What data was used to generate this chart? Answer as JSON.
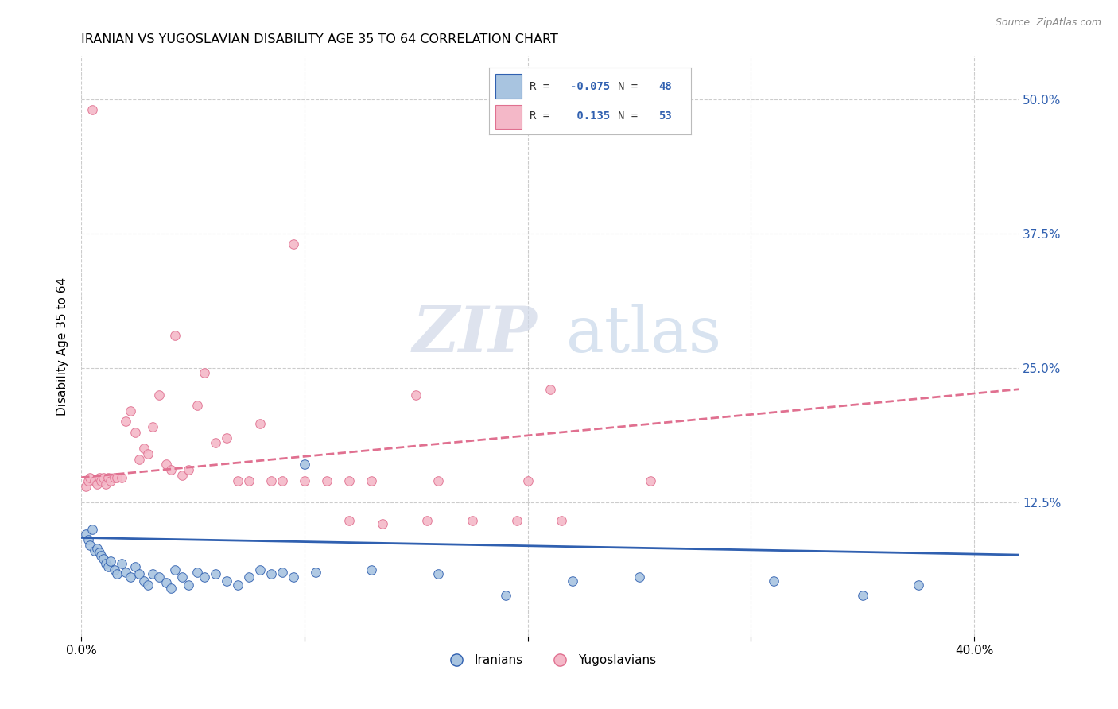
{
  "title": "IRANIAN VS YUGOSLAVIAN DISABILITY AGE 35 TO 64 CORRELATION CHART",
  "source": "Source: ZipAtlas.com",
  "ylabel": "Disability Age 35 to 64",
  "ytick_values": [
    0.125,
    0.25,
    0.375,
    0.5
  ],
  "xlim": [
    0.0,
    0.42
  ],
  "ylim": [
    0.0,
    0.54
  ],
  "iranian_color": "#a8c4e0",
  "yugoslavian_color": "#f4b8c8",
  "iranian_line_color": "#3060b0",
  "yugoslavian_line_color": "#e07090",
  "background_color": "#ffffff",
  "grid_color": "#cccccc",
  "iranians_label": "Iranians",
  "yugoslavians_label": "Yugoslavians",
  "iranians_scatter_x": [
    0.002,
    0.003,
    0.004,
    0.005,
    0.006,
    0.007,
    0.008,
    0.009,
    0.01,
    0.011,
    0.012,
    0.013,
    0.015,
    0.016,
    0.018,
    0.02,
    0.022,
    0.024,
    0.026,
    0.028,
    0.03,
    0.032,
    0.035,
    0.038,
    0.04,
    0.042,
    0.045,
    0.048,
    0.052,
    0.055,
    0.06,
    0.065,
    0.07,
    0.075,
    0.08,
    0.085,
    0.09,
    0.095,
    0.1,
    0.105,
    0.13,
    0.16,
    0.19,
    0.22,
    0.25,
    0.31,
    0.35,
    0.375
  ],
  "iranians_scatter_y": [
    0.095,
    0.09,
    0.085,
    0.1,
    0.08,
    0.082,
    0.078,
    0.075,
    0.072,
    0.068,
    0.065,
    0.07,
    0.062,
    0.058,
    0.068,
    0.06,
    0.055,
    0.065,
    0.058,
    0.052,
    0.048,
    0.058,
    0.055,
    0.05,
    0.045,
    0.062,
    0.055,
    0.048,
    0.06,
    0.055,
    0.058,
    0.052,
    0.048,
    0.055,
    0.062,
    0.058,
    0.06,
    0.055,
    0.16,
    0.06,
    0.062,
    0.058,
    0.038,
    0.052,
    0.055,
    0.052,
    0.038,
    0.048
  ],
  "yugoslavians_scatter_x": [
    0.002,
    0.003,
    0.004,
    0.005,
    0.006,
    0.007,
    0.008,
    0.009,
    0.01,
    0.011,
    0.012,
    0.013,
    0.015,
    0.016,
    0.018,
    0.02,
    0.022,
    0.024,
    0.026,
    0.028,
    0.03,
    0.032,
    0.035,
    0.038,
    0.04,
    0.042,
    0.045,
    0.048,
    0.052,
    0.055,
    0.06,
    0.065,
    0.07,
    0.075,
    0.08,
    0.085,
    0.09,
    0.095,
    0.1,
    0.11,
    0.12,
    0.13,
    0.15,
    0.16,
    0.2,
    0.21,
    0.255,
    0.12,
    0.135,
    0.155,
    0.175,
    0.195,
    0.215
  ],
  "yugoslavians_scatter_y": [
    0.14,
    0.145,
    0.148,
    0.49,
    0.145,
    0.142,
    0.148,
    0.145,
    0.148,
    0.142,
    0.148,
    0.145,
    0.148,
    0.148,
    0.148,
    0.2,
    0.21,
    0.19,
    0.165,
    0.175,
    0.17,
    0.195,
    0.225,
    0.16,
    0.155,
    0.28,
    0.15,
    0.155,
    0.215,
    0.245,
    0.18,
    0.185,
    0.145,
    0.145,
    0.198,
    0.145,
    0.145,
    0.365,
    0.145,
    0.145,
    0.145,
    0.145,
    0.225,
    0.145,
    0.145,
    0.23,
    0.145,
    0.108,
    0.105,
    0.108,
    0.108,
    0.108,
    0.108
  ],
  "iranian_trend_x": [
    0.0,
    0.42
  ],
  "iranian_trend_y": [
    0.092,
    0.076
  ],
  "yugoslavian_trend_x": [
    0.0,
    0.42
  ],
  "yugoslavian_trend_y": [
    0.148,
    0.23
  ],
  "xtick_positions": [
    0.0,
    0.1,
    0.2,
    0.3,
    0.4
  ],
  "xtick_show": [
    "0.0%",
    "",
    "",
    "",
    "40.0%"
  ]
}
